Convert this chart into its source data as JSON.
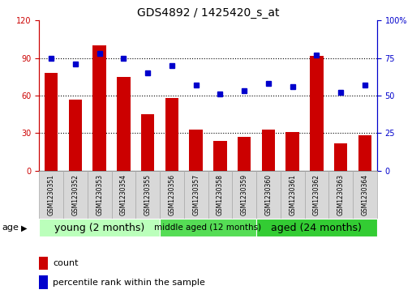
{
  "title": "GDS4892 / 1425420_s_at",
  "samples": [
    "GSM1230351",
    "GSM1230352",
    "GSM1230353",
    "GSM1230354",
    "GSM1230355",
    "GSM1230356",
    "GSM1230357",
    "GSM1230358",
    "GSM1230359",
    "GSM1230360",
    "GSM1230361",
    "GSM1230362",
    "GSM1230363",
    "GSM1230364"
  ],
  "counts": [
    78,
    57,
    100,
    75,
    45,
    58,
    33,
    24,
    27,
    33,
    31,
    92,
    22,
    28
  ],
  "percentiles": [
    75,
    71,
    78,
    75,
    65,
    70,
    57,
    51,
    53,
    58,
    56,
    77,
    52,
    57
  ],
  "ylim_left": [
    0,
    120
  ],
  "ylim_right": [
    0,
    100
  ],
  "yticks_left": [
    0,
    30,
    60,
    90,
    120
  ],
  "ytick_labels_left": [
    "0",
    "30",
    "60",
    "90",
    "120"
  ],
  "ytick_labels_right": [
    "0",
    "25",
    "50",
    "75",
    "100%"
  ],
  "bar_color": "#cc0000",
  "dot_color": "#0000cc",
  "group_colors": [
    "#bbffbb",
    "#55dd55",
    "#33cc33"
  ],
  "group_labels": [
    "young (2 months)",
    "middle aged (12 months)",
    "aged (24 months)"
  ],
  "group_starts": [
    0,
    5,
    9
  ],
  "group_ends": [
    5,
    9,
    14
  ],
  "group_fontsizes": [
    9,
    7.5,
    9
  ],
  "age_label": "age",
  "legend_count_label": "count",
  "legend_pct_label": "percentile rank within the sample",
  "title_fontsize": 10,
  "tick_fontsize": 7,
  "legend_fontsize": 8
}
